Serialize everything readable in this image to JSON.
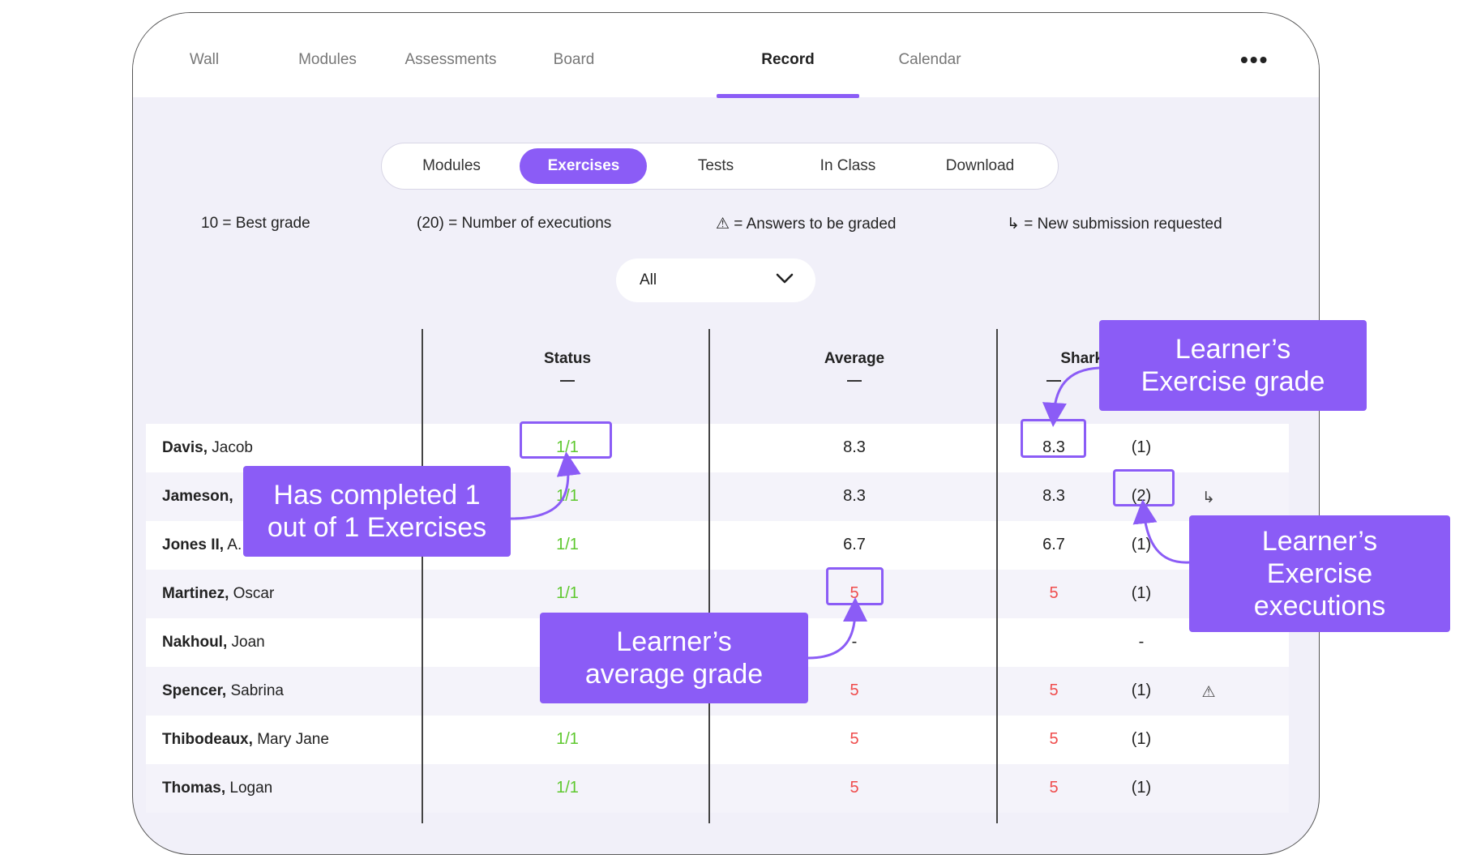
{
  "topnav": {
    "tabs": [
      "Wall",
      "Modules",
      "Assessments",
      "Board",
      "Record",
      "Calendar"
    ],
    "active": "Record",
    "more_label": "•••"
  },
  "subtabs": {
    "items": [
      "Modules",
      "Exercises",
      "Tests",
      "In Class",
      "Download"
    ],
    "active": "Exercises"
  },
  "legend": {
    "best_grade": "10 = Best grade",
    "executions": "(20) = Number of executions",
    "to_grade": "⚠ = Answers to be graded",
    "resubmission": "↳ = New submission requested"
  },
  "filter": {
    "value": "All"
  },
  "table": {
    "headers": {
      "status": "Status",
      "average": "Average",
      "exercise": "Sharks"
    },
    "header_dash": "—",
    "rows": [
      {
        "last": "Davis,",
        "first": "Jacob",
        "status": "1/1",
        "average": "8.3",
        "grade": "8.3",
        "executions": "(1)",
        "flag": ""
      },
      {
        "last": "Jameson,",
        "first": "",
        "status": "1/1",
        "average": "8.3",
        "grade": "8.3",
        "executions": "(2)",
        "flag": "↳"
      },
      {
        "last": "Jones II,",
        "first": "A.",
        "status": "1/1",
        "average": "6.7",
        "grade": "6.7",
        "executions": "(1)",
        "flag": ""
      },
      {
        "last": "Martinez,",
        "first": "Oscar",
        "status": "1/1",
        "average": "5",
        "grade": "5",
        "executions": "(1)",
        "flag": ""
      },
      {
        "last": "Nakhoul,",
        "first": "Joan",
        "status": "",
        "average": "-",
        "grade": "",
        "executions": "-",
        "flag": ""
      },
      {
        "last": "Spencer,",
        "first": "Sabrina",
        "status": "",
        "average": "5",
        "grade": "5",
        "executions": "(1)",
        "flag": "⚠"
      },
      {
        "last": "Thibodeaux,",
        "first": "Mary Jane",
        "status": "1/1",
        "average": "5",
        "grade": "5",
        "executions": "(1)",
        "flag": ""
      },
      {
        "last": "Thomas,",
        "first": "Logan",
        "status": "1/1",
        "average": "5",
        "grade": "5",
        "executions": "(1)",
        "flag": ""
      }
    ]
  },
  "callouts": {
    "completed": [
      "Has completed 1",
      "out of 1 Exercises"
    ],
    "exercise_grade": [
      "Learner’s",
      "Exercise grade"
    ],
    "executions": [
      "Learner’s",
      "Exercise",
      "executions"
    ],
    "average_grade": [
      "Learner’s",
      "average grade"
    ]
  },
  "colors": {
    "accent": "#8b5cf6",
    "pass": "#5ec82e",
    "fail": "#ef4b4b"
  }
}
